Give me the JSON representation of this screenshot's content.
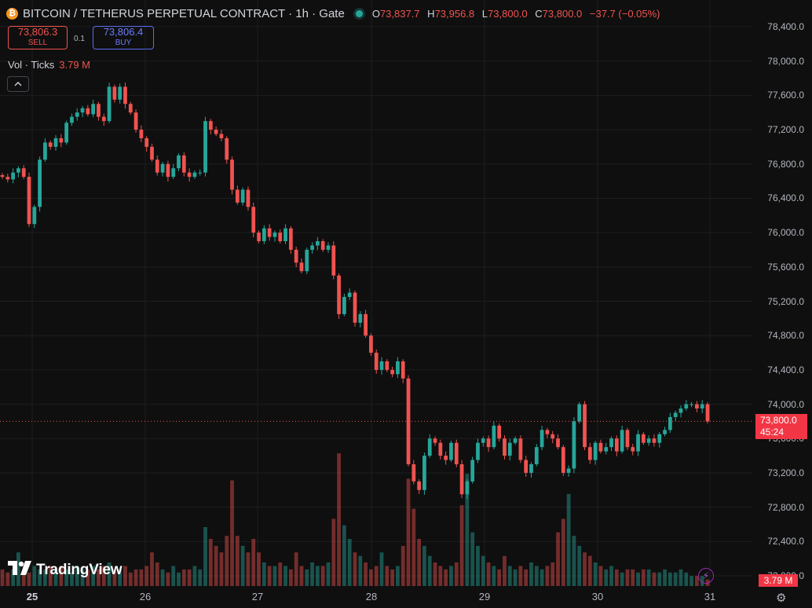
{
  "header": {
    "coin_letter": "₿",
    "title": "BITCOIN / TETHERUS PERPETUAL CONTRACT · 1h · Gate",
    "ohlc": {
      "o_key": "O",
      "o": "73,837.7",
      "h_key": "H",
      "h": "73,956.8",
      "l_key": "L",
      "l": "73,800.0",
      "c_key": "C",
      "c": "73,800.0",
      "change": "−37.7 (−0.05%)"
    }
  },
  "trade": {
    "sell_price": "73,806.3",
    "sell_label": "SELL",
    "spread": "0.1",
    "buy_price": "73,806.4",
    "buy_label": "BUY"
  },
  "volume_legend": {
    "label": "Vol · Ticks",
    "value": "3.79 M"
  },
  "collapse_icon": "chevron-up-icon",
  "price_tag": {
    "price": "73,800.0",
    "countdown": "45:24"
  },
  "volume_tag": "3.79 M",
  "logo_text": "TradingView",
  "colors": {
    "up": "#26a69a",
    "down": "#ef5350",
    "background": "#0f0f0f",
    "grid": "#1e1e1e"
  },
  "chart_data": {
    "type": "candlestick",
    "timeframe": "1h",
    "y_axis_ticks": [
      "78,400.0",
      "78,000.0",
      "77,600.0",
      "77,200.0",
      "76,800.0",
      "76,400.0",
      "76,000.0",
      "75,600.0",
      "75,200.0",
      "74,800.0",
      "74,400.0",
      "74,000.0",
      "73,600.0",
      "73,200.0",
      "72,800.0",
      "72,400.0",
      "72,000.0"
    ],
    "y_axis_values": [
      78400,
      78000,
      77600,
      77200,
      76800,
      76400,
      76000,
      75600,
      75200,
      74800,
      74400,
      74000,
      73600,
      73200,
      72800,
      72400,
      72000
    ],
    "ylim": [
      71950,
      78560
    ],
    "x_axis_ticks": [
      "25",
      "26",
      "27",
      "28",
      "29",
      "30",
      "31"
    ],
    "last_price": 73800.0,
    "series_close": [
      76650,
      76620,
      76700,
      76750,
      76650,
      76100,
      76300,
      76850,
      77050,
      77000,
      77100,
      77050,
      77280,
      77350,
      77400,
      77450,
      77380,
      77500,
      77350,
      77300,
      77700,
      77550,
      77700,
      77500,
      77400,
      77200,
      77100,
      77000,
      76850,
      76700,
      76800,
      76650,
      76750,
      76900,
      76700,
      76650,
      76700,
      76700,
      77300,
      77200,
      77150,
      77100,
      76850,
      76500,
      76350,
      76500,
      76300,
      76000,
      75900,
      76050,
      75950,
      76000,
      75900,
      76050,
      75800,
      75650,
      75550,
      75800,
      75850,
      75900,
      75800,
      75850,
      75500,
      75050,
      75250,
      75300,
      74950,
      75050,
      74800,
      74600,
      74400,
      74500,
      74400,
      74350,
      74500,
      74300,
      73300,
      73100,
      73000,
      73400,
      73600,
      73550,
      73400,
      73350,
      73550,
      73300,
      72950,
      73100,
      73350,
      73550,
      73600,
      73500,
      73750,
      73600,
      73400,
      73550,
      73600,
      73350,
      73200,
      73300,
      73500,
      73700,
      73650,
      73600,
      73500,
      73200,
      73250,
      73800,
      74000,
      73500,
      73350,
      73550,
      73450,
      73500,
      73600,
      73450,
      73700,
      73500,
      73450,
      73650,
      73550,
      73600,
      73550,
      73650,
      73700,
      73850,
      73900,
      73950,
      74000,
      74000,
      73950,
      74000,
      73800
    ],
    "volume": {
      "legend": "Vol · Ticks",
      "last": "3.79 M",
      "values": [
        0.38,
        0.31,
        0.38,
        0.77,
        0.38,
        0.31,
        0.46,
        0.38,
        0.38,
        0.46,
        0.38,
        0.46,
        0.38,
        0.31,
        0.46,
        0.38,
        0.38,
        0.46,
        0.38,
        0.46,
        0.54,
        0.38,
        0.38,
        0.46,
        0.31,
        0.38,
        0.38,
        0.46,
        0.77,
        0.54,
        0.38,
        0.31,
        0.46,
        0.31,
        0.38,
        0.38,
        0.46,
        0.38,
        1.35,
        1.08,
        0.92,
        0.77,
        1.15,
        2.42,
        1.15,
        0.92,
        0.77,
        1.08,
        0.77,
        0.54,
        0.46,
        0.46,
        0.54,
        0.46,
        0.38,
        0.77,
        0.46,
        0.38,
        0.54,
        0.46,
        0.46,
        0.54,
        1.54,
        3.04,
        1.39,
        1.08,
        0.77,
        0.69,
        0.54,
        0.38,
        0.46,
        0.77,
        0.46,
        0.38,
        0.46,
        0.92,
        2.46,
        1.77,
        1.08,
        0.92,
        0.69,
        0.54,
        0.46,
        0.38,
        0.46,
        0.54,
        1.85,
        2.57,
        1.23,
        0.92,
        0.69,
        0.54,
        0.46,
        0.38,
        0.69,
        0.46,
        0.38,
        0.46,
        0.38,
        0.54,
        0.46,
        0.38,
        0.46,
        0.54,
        1.23,
        1.54,
        2.11,
        1.15,
        0.92,
        0.77,
        0.69,
        0.54,
        0.46,
        0.38,
        0.46,
        0.38,
        0.31,
        0.38,
        0.38,
        0.31,
        0.38,
        0.38,
        0.31,
        0.31,
        0.38,
        0.31,
        0.31,
        0.38,
        0.31,
        0.23,
        0.23,
        0.23,
        0.15
      ]
    }
  }
}
